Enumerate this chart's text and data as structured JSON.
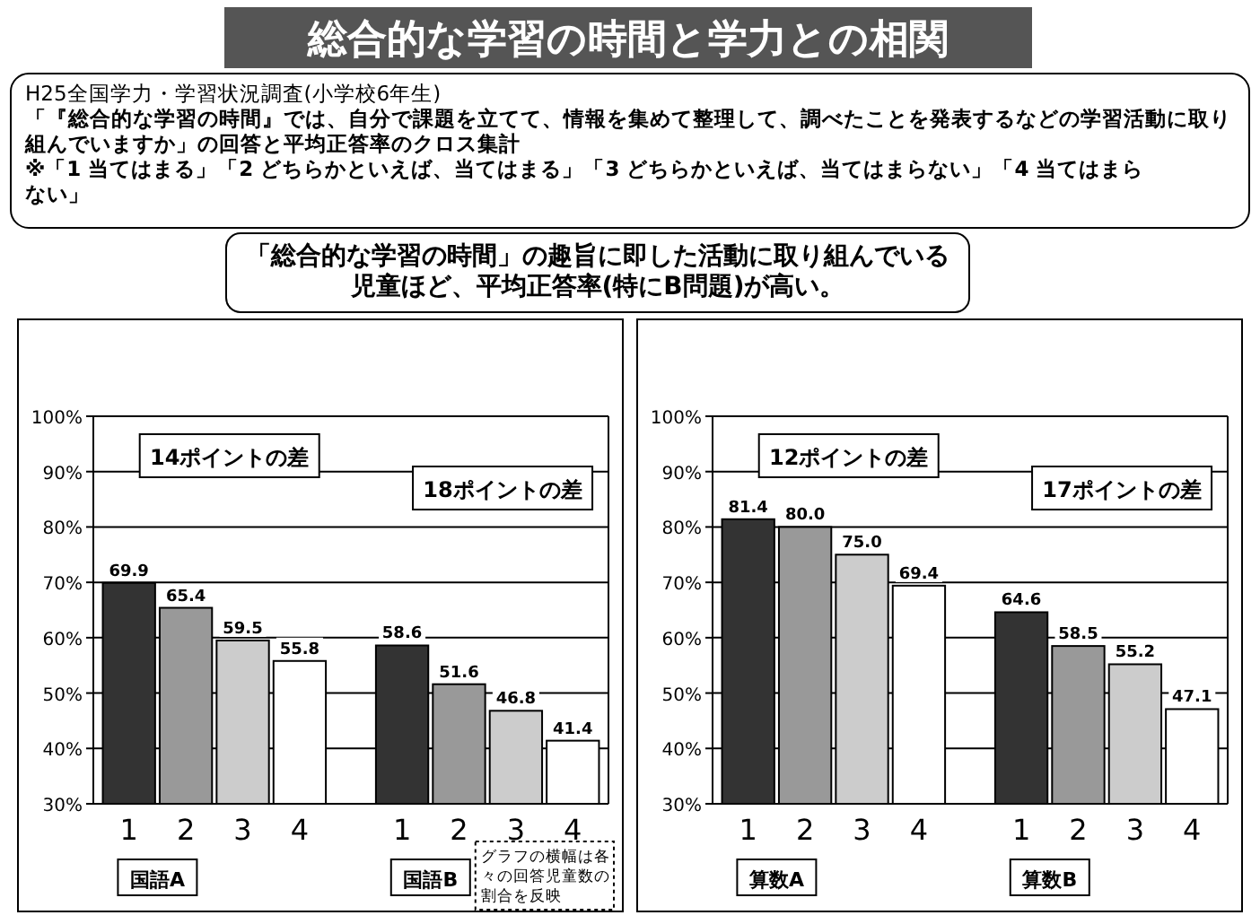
{
  "chart_data": [
    {
      "type": "bar",
      "title": "総合的な学習の時間と学力との相関",
      "subtitle": "H25全国学力・学習状況調査(小学校6年生)\n「『総合的な学習の時間』では、自分で課題を立てて、情報を集めて整理して、調べたことを発表するなどの学習活動に取り組んでいますか」の回答と平均正答率のクロス集計\n※「1 当てはまる」「2 どちらかといえば、当てはまる」「3 どちらかといえば、当てはまらない」「4 当てはまらない」",
      "categories": [
        "1",
        "2",
        "3",
        "4",
        "1",
        "2",
        "3",
        "4"
      ],
      "values": [
        69.9,
        65.4,
        59.5,
        55.8,
        58.6,
        51.6,
        46.8,
        41.4
      ],
      "value_labels": [
        "69.9",
        "65.4",
        "59.5",
        "55.8",
        "58.6",
        "51.6",
        "46.8",
        "41.4"
      ],
      "colors": [
        "#333333",
        "#999999",
        "#cccccc",
        "#ffffff",
        "#333333",
        "#999999",
        "#cccccc",
        "#ffffff"
      ],
      "ylim": [
        30,
        100
      ],
      "yticks": [
        {
          "value": 30,
          "label": "30%"
        },
        {
          "value": 40,
          "label": "40%"
        },
        {
          "value": 50,
          "label": "50%"
        },
        {
          "value": 60,
          "label": "60%"
        },
        {
          "value": 70,
          "label": "70%"
        },
        {
          "value": 80,
          "label": "80%"
        },
        {
          "value": 90,
          "label": "90%"
        },
        {
          "value": 100,
          "label": "100%"
        }
      ],
      "grid": "y",
      "annotations": [
        "14ポイントの差",
        "18ポイントの差",
        "国語A",
        "国語B",
        "グラフの横幅は各々の回答児童数の割合を反映"
      ]
    },
    {
      "type": "bar",
      "title": "「総合的な学習の時間」の趣旨に即した活動に取り組んでいる児童ほど、平均正答率(特にB問題)が高い。",
      "categories": [
        "1",
        "2",
        "3",
        "4",
        "1",
        "2",
        "3",
        "4"
      ],
      "values": [
        81.4,
        80.0,
        75.0,
        69.4,
        64.6,
        58.5,
        55.2,
        47.1
      ],
      "value_labels": [
        "81.4",
        "80.0",
        "75.0",
        "69.4",
        "64.6",
        "58.5",
        "55.2",
        "47.1"
      ],
      "colors": [
        "#333333",
        "#999999",
        "#cccccc",
        "#ffffff",
        "#333333",
        "#999999",
        "#cccccc",
        "#ffffff"
      ],
      "ylim": [
        30,
        100
      ],
      "yticks": [
        {
          "value": 30,
          "label": "30%"
        },
        {
          "value": 40,
          "label": "40%"
        },
        {
          "value": 50,
          "label": "50%"
        },
        {
          "value": 60,
          "label": "60%"
        },
        {
          "value": 70,
          "label": "70%"
        },
        {
          "value": 80,
          "label": "80%"
        },
        {
          "value": 90,
          "label": "90%"
        },
        {
          "value": 100,
          "label": "100%"
        }
      ],
      "grid": "y",
      "annotations": [
        "12ポイントの差",
        "17ポイントの差",
        "算数A",
        "算数B"
      ]
    }
  ]
}
